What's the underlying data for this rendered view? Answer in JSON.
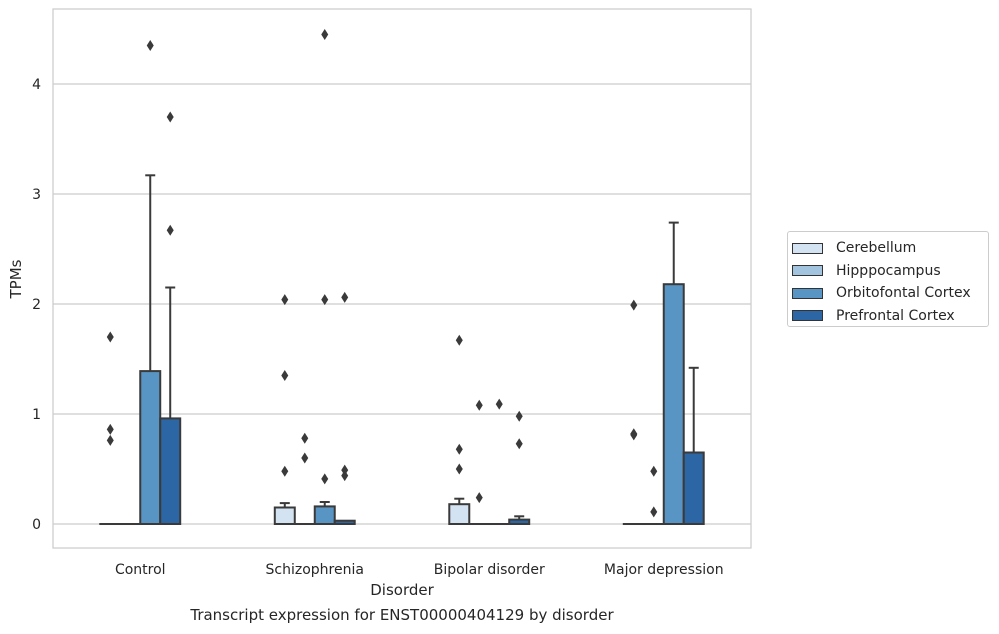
{
  "caption": "Transcript expression for ENST00000404129 by disorder",
  "chart_data": {
    "type": "bar",
    "xlabel": "Disorder",
    "ylabel": "TPMs",
    "ylim": [
      -0.22,
      4.7
    ],
    "yticks": [
      0,
      1,
      2,
      3,
      4
    ],
    "grid": "horizontal",
    "legend_position": "right",
    "categories": [
      "Control",
      "Schizophrenia",
      "Bipolar disorder",
      "Major depression"
    ],
    "series": [
      {
        "name": "Cerebellum",
        "color": "#d4e3f1",
        "values": [
          0.0,
          0.15,
          0.18,
          0.0
        ],
        "error_top": [
          null,
          0.19,
          0.23,
          null
        ],
        "outliers": [
          [
            0.76,
            0.86,
            1.7
          ],
          [
            0.48,
            1.35,
            2.04
          ],
          [
            0.5,
            0.68,
            1.67
          ],
          [
            0.81,
            0.82,
            1.99
          ]
        ]
      },
      {
        "name": "Hipppocampus",
        "color": "#a3c4df",
        "values": [
          0.0,
          0.0,
          0.0,
          0.0
        ],
        "error_top": [
          null,
          null,
          null,
          null
        ],
        "outliers": [
          [],
          [
            0.6,
            0.78
          ],
          [
            0.24,
            1.08
          ],
          [
            0.11,
            0.48
          ]
        ]
      },
      {
        "name": "Orbitofontal Cortex",
        "color": "#5895c4",
        "values": [
          1.39,
          0.16,
          0.0,
          2.18
        ],
        "error_top": [
          3.17,
          0.2,
          null,
          2.74
        ],
        "outliers": [
          [
            4.35
          ],
          [
            0.41,
            2.04,
            4.45
          ],
          [
            1.09
          ],
          []
        ]
      },
      {
        "name": "Prefrontal Cortex",
        "color": "#2c66a4",
        "values": [
          0.96,
          0.03,
          0.04,
          0.65
        ],
        "error_top": [
          2.15,
          null,
          0.07,
          1.42
        ],
        "outliers": [
          [
            2.67,
            3.7
          ],
          [
            0.44,
            0.49,
            2.06
          ],
          [
            0.73,
            0.98
          ],
          []
        ]
      }
    ]
  }
}
